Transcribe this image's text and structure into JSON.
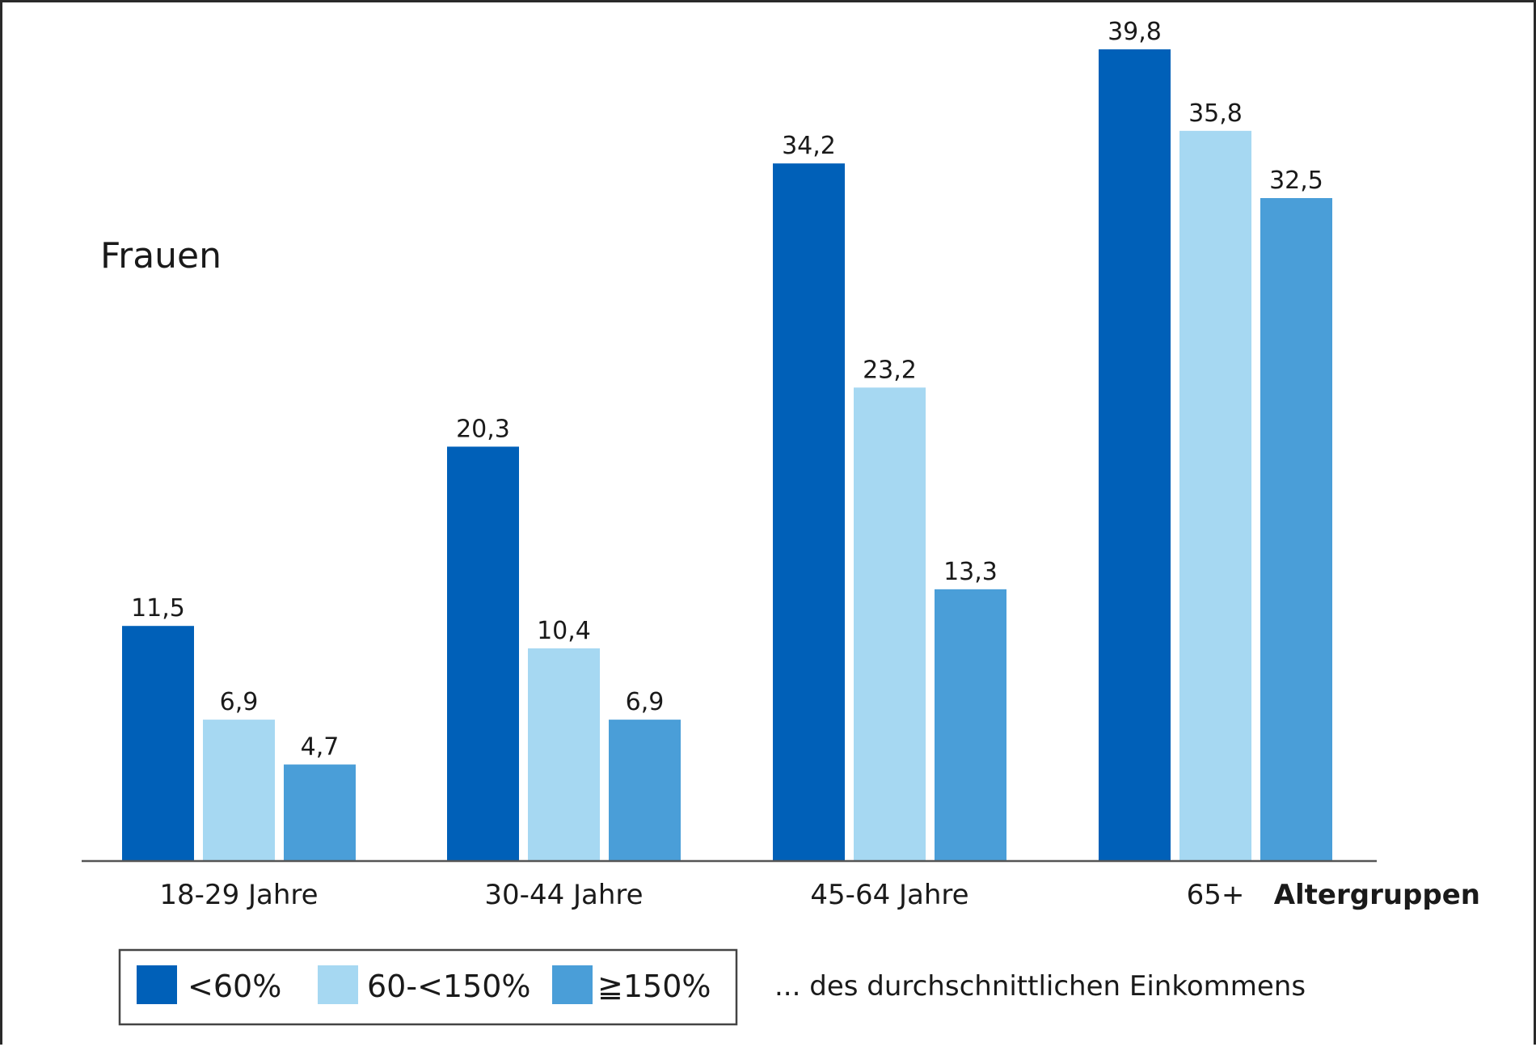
{
  "chart_data": {
    "type": "bar",
    "title": "Frauen",
    "xlabel": "Altergruppen",
    "ylabel": "",
    "categories": [
      "18-29 Jahre",
      "30-44 Jahre",
      "45-64 Jahre",
      "65+"
    ],
    "series": [
      {
        "name": "<60%",
        "color": "#0060b8",
        "values": [
          11.5,
          20.3,
          34.2,
          39.8
        ],
        "labels": [
          "11,5",
          "20,3",
          "34,2",
          "39,8"
        ]
      },
      {
        "name": "60-<150%",
        "color": "#a6d8f2",
        "values": [
          6.9,
          10.4,
          23.2,
          35.8
        ],
        "labels": [
          "6,9",
          "10,4",
          "23,2",
          "35,8"
        ]
      },
      {
        "name": "≧150%",
        "color": "#4a9ed8",
        "values": [
          4.7,
          6.9,
          13.3,
          32.5
        ],
        "labels": [
          "4,7",
          "6,9",
          "13,3",
          "32,5"
        ]
      }
    ],
    "ylim": [
      0,
      40
    ],
    "grid": false,
    "legend_position": "bottom-left",
    "legend_note": "... des durchschnittlichen Einkommens"
  }
}
